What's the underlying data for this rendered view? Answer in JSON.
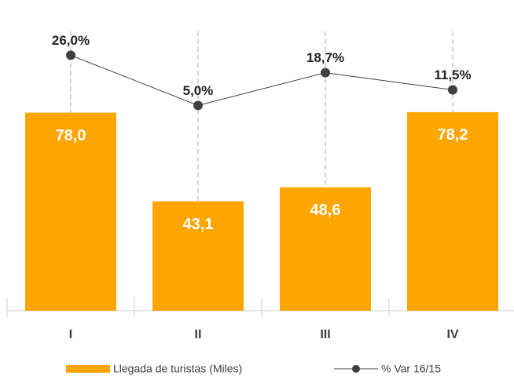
{
  "chart_data": {
    "type": "bar",
    "categories": [
      "I",
      "II",
      "III",
      "IV"
    ],
    "ylim": [
      0,
      110
    ],
    "y2lim": [
      -81,
      36
    ],
    "series": [
      {
        "name": "Llegada de turistas (Miles)",
        "type": "bar",
        "color": "#ffa500",
        "values": [
          78.0,
          43.1,
          48.6,
          78.2
        ],
        "value_labels": [
          "78,0",
          "43,1",
          "48,6",
          "78,2"
        ]
      },
      {
        "name": "% Var 16/15",
        "type": "line",
        "axis": "y2",
        "color": "#404040",
        "values": [
          26.0,
          5.0,
          18.7,
          11.5
        ],
        "value_labels": [
          "26,0%",
          "5,0%",
          "18,7%",
          "11,5%"
        ]
      }
    ]
  }
}
